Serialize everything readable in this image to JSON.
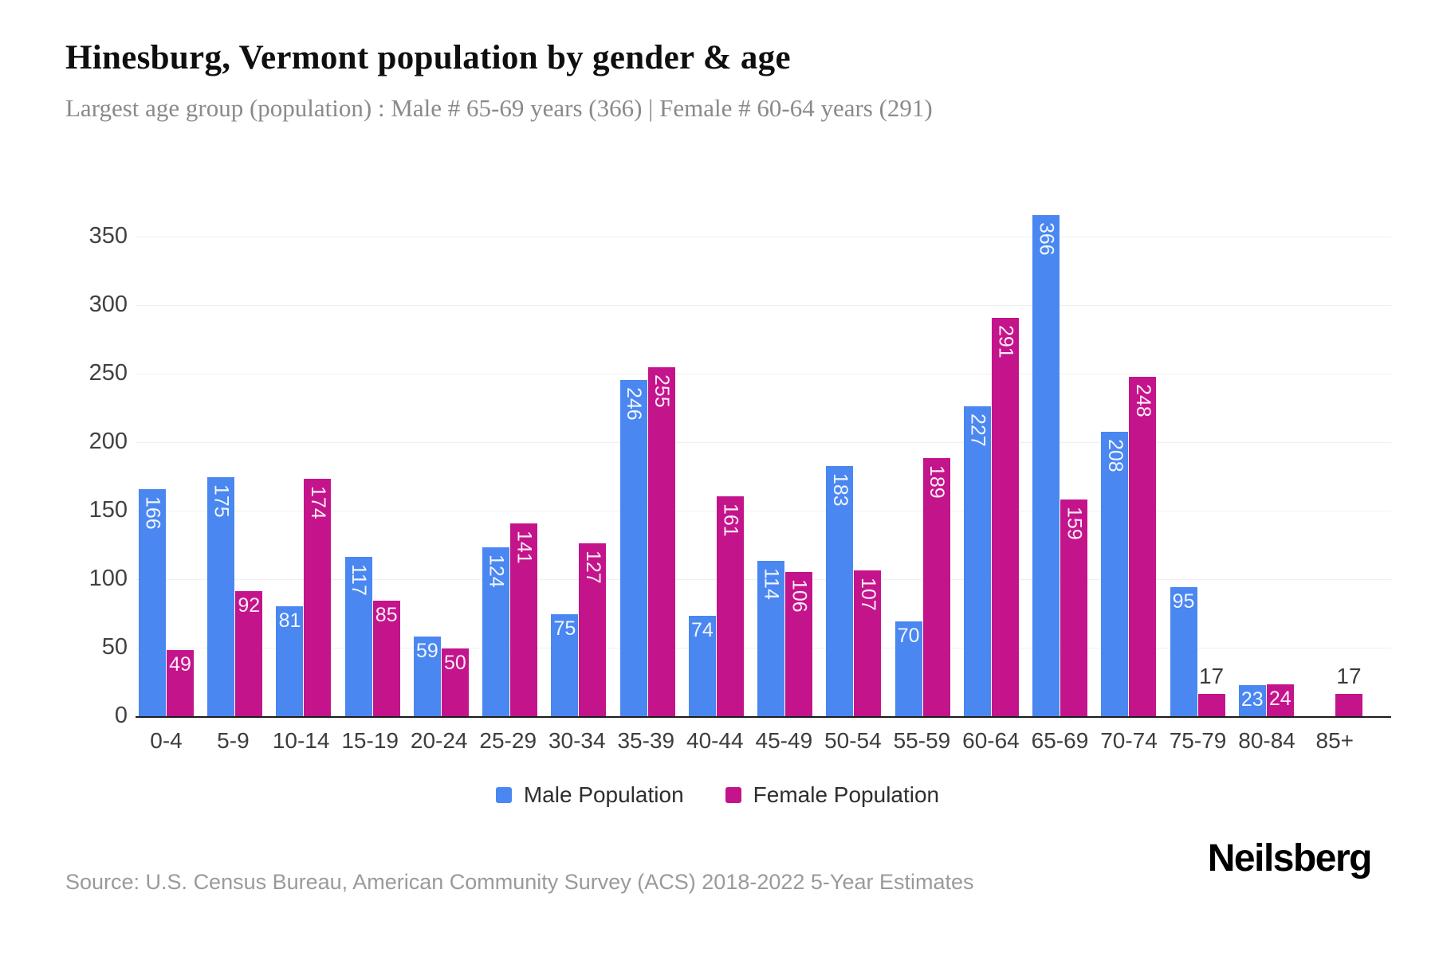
{
  "header": {
    "title": "Hinesburg, Vermont population by gender & age",
    "subtitle": "Largest age group (population) : Male # 65-69 years (366) | Female # 60-64 years (291)"
  },
  "chart_data": {
    "type": "bar",
    "title": "Hinesburg, Vermont population by gender & age",
    "categories": [
      "0-4",
      "5-9",
      "10-14",
      "15-19",
      "20-24",
      "25-29",
      "30-34",
      "35-39",
      "40-44",
      "45-49",
      "50-54",
      "55-59",
      "60-64",
      "65-69",
      "70-74",
      "75-79",
      "80-84",
      "85+"
    ],
    "series": [
      {
        "key": "male",
        "name": "Male Population",
        "color": "#4A87F0",
        "values": [
          166,
          175,
          81,
          117,
          59,
          124,
          75,
          246,
          74,
          114,
          183,
          70,
          227,
          366,
          208,
          95,
          23,
          0
        ]
      },
      {
        "key": "female",
        "name": "Female Population",
        "color": "#C4148B",
        "values": [
          49,
          92,
          174,
          85,
          50,
          141,
          127,
          255,
          161,
          106,
          107,
          189,
          291,
          159,
          248,
          17,
          24,
          17
        ]
      }
    ],
    "xlabel": "",
    "ylabel": "",
    "ylim": [
      0,
      380
    ],
    "yticks": [
      0,
      50,
      100,
      150,
      200,
      250,
      300,
      350
    ],
    "grid": true,
    "legend_position": "bottom"
  },
  "footer": {
    "source": "Source: U.S. Census Bureau, American Community Survey (ACS) 2018-2022 5-Year Estimates",
    "brand": "Neilsberg"
  }
}
